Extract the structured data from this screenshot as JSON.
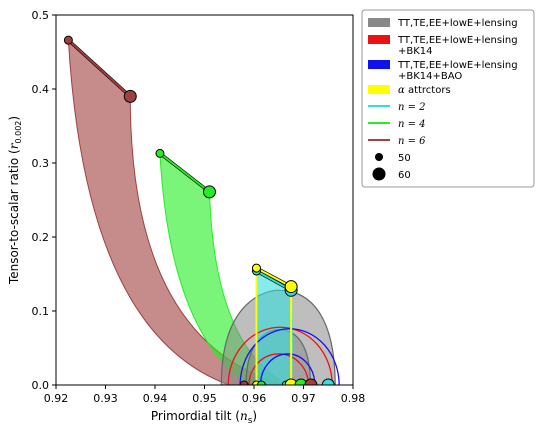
{
  "chart_data": {
    "type": "scatter",
    "xlabel": "Primordial tilt (n_s)",
    "xlabel_main": "Primordial tilt (",
    "xlabel_sym": "n",
    "xlabel_sub": "s",
    "xlabel_close": ")",
    "ylabel": "Tensor-to-scalar ratio (r_0.002)",
    "ylabel_main": "Tensor-to-scalar ratio (",
    "ylabel_sym": "r",
    "ylabel_sub": "0.002",
    "ylabel_close": ")",
    "xlim": [
      0.92,
      0.98
    ],
    "ylim": [
      0.0,
      0.5
    ],
    "xticks": [
      "0.92",
      "0.93",
      "0.94",
      "0.95",
      "0.96",
      "0.97",
      "0.98"
    ],
    "yticks": [
      "0.0",
      "0.1",
      "0.2",
      "0.3",
      "0.4",
      "0.5"
    ],
    "colors": {
      "planck": "#888888",
      "bk14": "#ee1111",
      "bao": "#1111ee",
      "attractors": "#ffff00",
      "n2": "#33dddd",
      "n4": "#22ee22",
      "n6": "#a04040"
    },
    "contours": [
      {
        "name": "TT,TE,EE+lowE+lensing",
        "center": [
          0.9649,
          0.052
        ],
        "width": 0.0115,
        "top": 0.128
      },
      {
        "name": "TT,TE,EE+lowE+lensing+BK14",
        "center": [
          0.9653,
          0.03
        ],
        "width": 0.0105,
        "top": 0.078
      },
      {
        "name": "TT,TE,EE+lowE+lensing+BK14+BAO",
        "center": [
          0.9672,
          0.03
        ],
        "width": 0.0102,
        "top": 0.076
      }
    ],
    "series": [
      {
        "name": "n=6",
        "bands_top": [
          [
            0.9225,
            0.466
          ],
          [
            0.935,
            0.39
          ]
        ],
        "bands_bottom": [
          [
            0.961,
            0.0
          ],
          [
            0.97,
            0.0
          ]
        ],
        "points_n50": [
          [
            0.9225,
            0.466
          ],
          [
            0.958,
            0.0
          ]
        ],
        "points_n60": [
          [
            0.935,
            0.39
          ],
          [
            0.971,
            0.0
          ]
        ]
      },
      {
        "name": "n=4",
        "bands_top": [
          [
            0.941,
            0.313
          ],
          [
            0.951,
            0.261
          ]
        ],
        "points_n50": [
          [
            0.941,
            0.313
          ],
          [
            0.961,
            0.0
          ]
        ],
        "points_n60": [
          [
            0.951,
            0.261
          ],
          [
            0.969,
            0.0
          ]
        ]
      },
      {
        "name": "n=2",
        "bands_top": [
          [
            0.9605,
            0.154
          ],
          [
            0.9675,
            0.128
          ]
        ],
        "points_n50": [
          [
            0.9605,
            0.154
          ],
          [
            0.9665,
            0.0
          ]
        ],
        "points_n60": [
          [
            0.9675,
            0.128
          ],
          [
            0.975,
            0.0
          ]
        ]
      },
      {
        "name": "α attractors",
        "line": [
          [
            0.9605,
            0.158
          ],
          [
            0.9675,
            0.133
          ]
        ],
        "points_n50": [
          [
            0.9605,
            0.158
          ]
        ],
        "points_n60": [
          [
            0.9675,
            0.133
          ]
        ]
      }
    ],
    "legend": {
      "placement": "outside-right",
      "entries": [
        {
          "kind": "patch",
          "color": "#888888",
          "lines": [
            "TT,TE,EE+lowE+lensing"
          ]
        },
        {
          "kind": "patch",
          "color": "#ee1111",
          "lines": [
            "TT,TE,EE+lowE+lensing",
            "+BK14"
          ]
        },
        {
          "kind": "patch",
          "color": "#1111ee",
          "lines": [
            "TT,TE,EE+lowE+lensing",
            "+BK14+BAO"
          ]
        },
        {
          "kind": "patch",
          "color": "#ffff00",
          "lines": [
            "α attrctors"
          ],
          "italic_first": true
        },
        {
          "kind": "line",
          "color": "#33dddd",
          "lines": [
            "n = 2"
          ],
          "math": true
        },
        {
          "kind": "line",
          "color": "#22ee22",
          "lines": [
            "n = 4"
          ],
          "math": true
        },
        {
          "kind": "line",
          "color": "#a04040",
          "lines": [
            "n = 6"
          ],
          "math": true
        },
        {
          "kind": "dot",
          "size": "small",
          "lines": [
            "50"
          ]
        },
        {
          "kind": "dot",
          "size": "large",
          "lines": [
            "60"
          ]
        }
      ]
    }
  }
}
